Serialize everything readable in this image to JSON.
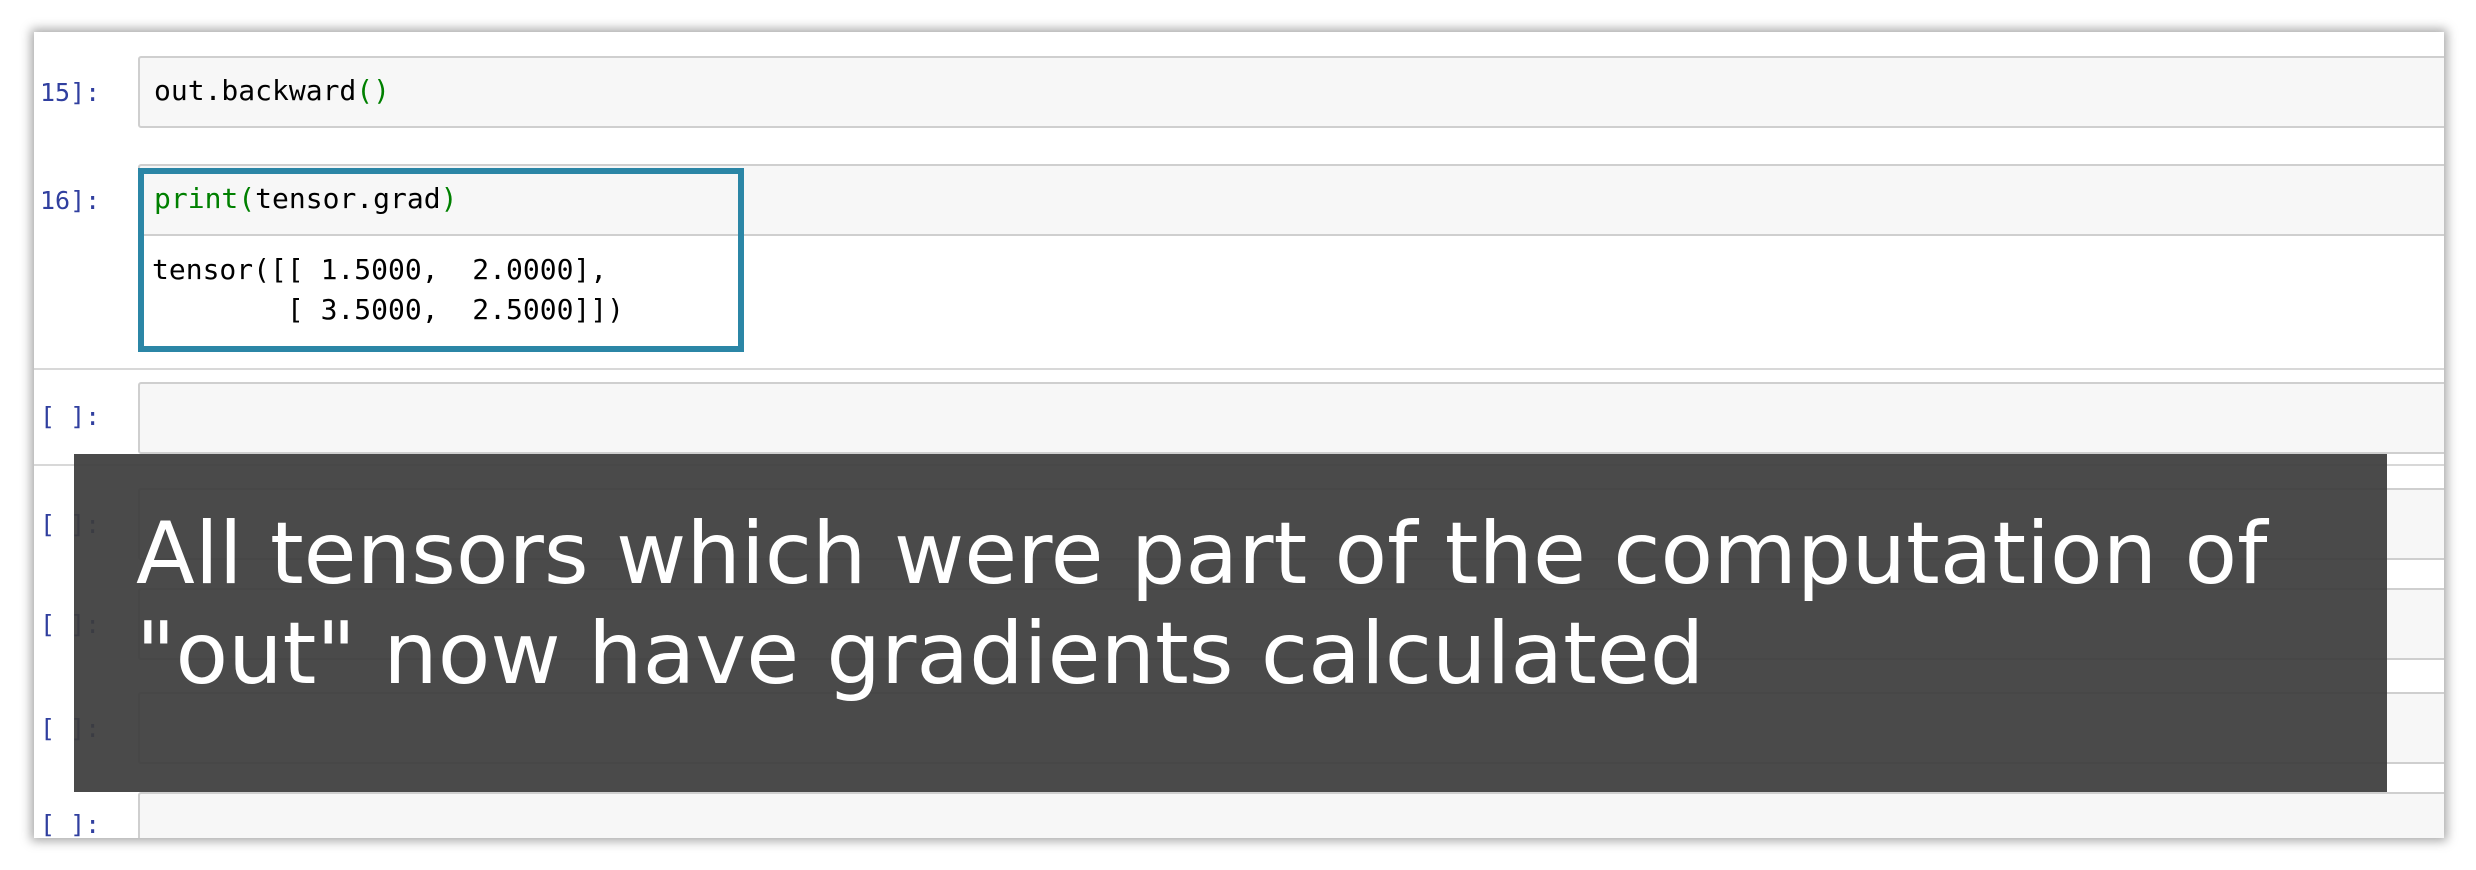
{
  "cells": [
    {
      "prompt": "15]:",
      "code_plain": "out.backward",
      "code_parens": "()"
    },
    {
      "prompt": "16]:",
      "code_keyword": "print",
      "code_open": "(",
      "code_arg": "tensor.grad",
      "code_close": ")",
      "output_line1": "tensor([[ 1.5000,  2.0000],",
      "output_line2": "        [ 3.5000,  2.5000]])"
    },
    {
      "prompt": "[ ]:"
    },
    {
      "prompt": "[ ]:"
    },
    {
      "prompt": "[ ]:"
    },
    {
      "prompt": "[ ]:"
    },
    {
      "prompt": "[ ]:"
    }
  ],
  "caption": {
    "line1": "All tensors which were part of the computation of",
    "line2": "\"out\" now have gradients calculated"
  },
  "colors": {
    "highlight": "#2b86a6",
    "prompt": "#303f9f",
    "builtin": "#008000"
  }
}
